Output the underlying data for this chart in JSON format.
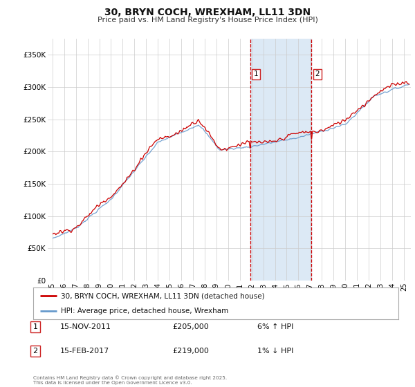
{
  "title": "30, BRYN COCH, WREXHAM, LL11 3DN",
  "subtitle": "Price paid vs. HM Land Registry's House Price Index (HPI)",
  "legend_line1": "30, BRYN COCH, WREXHAM, LL11 3DN (detached house)",
  "legend_line2": "HPI: Average price, detached house, Wrexham",
  "red_color": "#cc0000",
  "blue_color": "#6699cc",
  "highlight_color": "#dce9f5",
  "annotation1": [
    "1",
    "15-NOV-2011",
    "£205,000",
    "6% ↑ HPI"
  ],
  "annotation2": [
    "2",
    "15-FEB-2017",
    "£219,000",
    "1% ↓ HPI"
  ],
  "footer": [
    "Contains HM Land Registry data © Crown copyright and database right 2025.",
    "This data is licensed under the Open Government Licence v3.0."
  ],
  "ylim": [
    0,
    375000
  ],
  "yticks": [
    0,
    50000,
    100000,
    150000,
    200000,
    250000,
    300000,
    350000
  ],
  "ytick_labels": [
    "£0",
    "£50K",
    "£100K",
    "£150K",
    "£200K",
    "£250K",
    "£300K",
    "£350K"
  ],
  "background": "#ffffff",
  "grid_color": "#cccccc",
  "sale1_x": 2011.875,
  "sale2_x": 2017.125,
  "sale1_price": 205000,
  "sale2_price": 219000
}
